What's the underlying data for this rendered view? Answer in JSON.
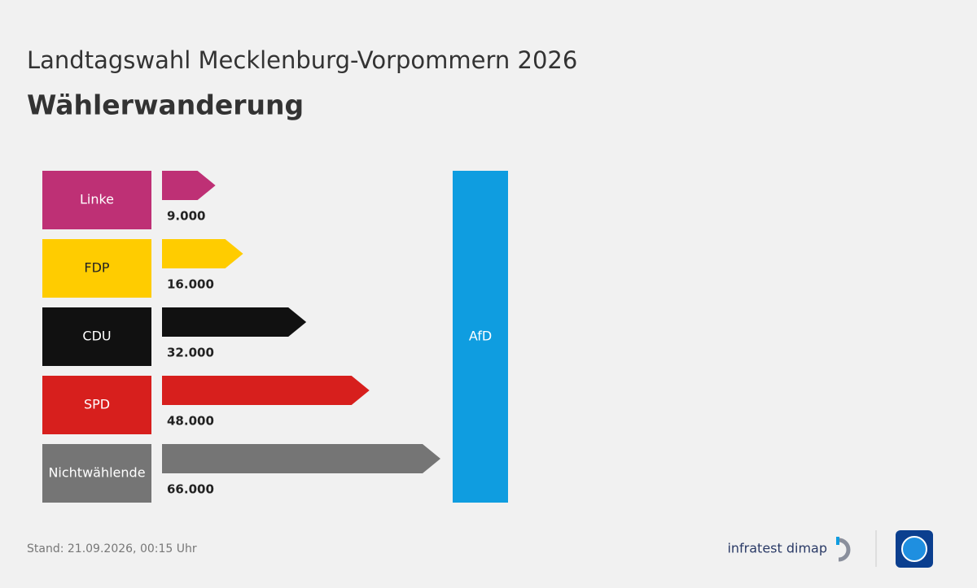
{
  "chart_data": {
    "type": "bar",
    "title": "Landtagswahl Mecklenburg-Vorpommern 2026",
    "subtitle": "Wählerwanderung",
    "categories": [
      "Linke",
      "FDP",
      "CDU",
      "SPD",
      "Nichtwählende"
    ],
    "values": [
      9000,
      16000,
      32000,
      48000,
      66000
    ],
    "value_labels": [
      "9.000",
      "16.000",
      "32.000",
      "48.000",
      "66.000"
    ],
    "colors": [
      "#be3075",
      "#ffcc00",
      "#111111",
      "#d71f1d",
      "#757575"
    ],
    "target": "AfD",
    "target_color": "#0f9de0",
    "footnote": "Stand:  21.09.2026, 00:15 Uhr",
    "source": "infratest dimap"
  }
}
